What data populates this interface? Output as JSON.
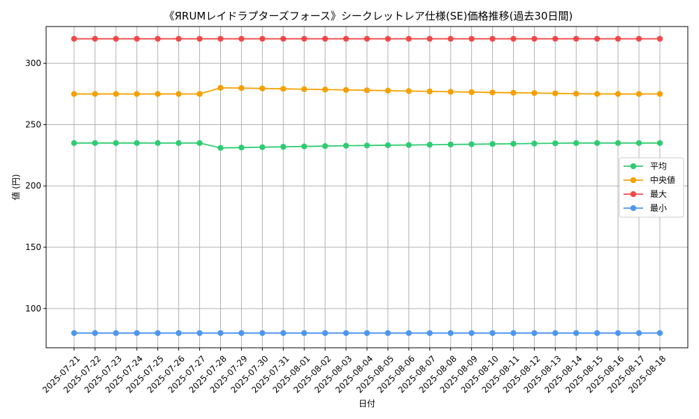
{
  "chart_data": {
    "type": "line",
    "title": "《ЯRUMレイドラプターズフォース》シークレットレア仕様(SE)価格推移(過去30日間)",
    "xlabel": "日付",
    "ylabel": "値 (円)",
    "ylim": [
      68,
      330
    ],
    "yticks": [
      100,
      150,
      200,
      250,
      300
    ],
    "grid": true,
    "legend_position": "center-right",
    "categories": [
      "2025-07-21",
      "2025-07-22",
      "2025-07-23",
      "2025-07-24",
      "2025-07-25",
      "2025-07-26",
      "2025-07-27",
      "2025-07-28",
      "2025-07-29",
      "2025-07-30",
      "2025-07-31",
      "2025-08-01",
      "2025-08-02",
      "2025-08-03",
      "2025-08-04",
      "2025-08-05",
      "2025-08-06",
      "2025-08-07",
      "2025-08-08",
      "2025-08-09",
      "2025-08-10",
      "2025-08-11",
      "2025-08-12",
      "2025-08-13",
      "2025-08-14",
      "2025-08-15",
      "2025-08-16",
      "2025-08-17",
      "2025-08-18"
    ],
    "series": [
      {
        "name": "平均",
        "color": "#2ecc71",
        "values": [
          235,
          235,
          235,
          235,
          235,
          235,
          235,
          231,
          231.3,
          231.6,
          231.9,
          232.2,
          232.5,
          232.8,
          233,
          233.2,
          233.4,
          233.6,
          233.8,
          234,
          234.2,
          234.4,
          234.6,
          234.8,
          235,
          235,
          235,
          235,
          235
        ]
      },
      {
        "name": "中央値",
        "color": "#f5a000",
        "values": [
          275,
          275,
          275,
          275,
          275,
          275,
          275,
          280,
          279.8,
          279.5,
          279.2,
          278.9,
          278.6,
          278.3,
          278,
          277.7,
          277.4,
          277.1,
          276.8,
          276.5,
          276.2,
          276,
          275.8,
          275.5,
          275.2,
          275,
          275,
          275,
          275
        ]
      },
      {
        "name": "最大",
        "color": "#f04848",
        "values": [
          320,
          320,
          320,
          320,
          320,
          320,
          320,
          320,
          320,
          320,
          320,
          320,
          320,
          320,
          320,
          320,
          320,
          320,
          320,
          320,
          320,
          320,
          320,
          320,
          320,
          320,
          320,
          320,
          320
        ]
      },
      {
        "name": "最小",
        "color": "#4d96f0",
        "values": [
          80,
          80,
          80,
          80,
          80,
          80,
          80,
          80,
          80,
          80,
          80,
          80,
          80,
          80,
          80,
          80,
          80,
          80,
          80,
          80,
          80,
          80,
          80,
          80,
          80,
          80,
          80,
          80,
          80
        ]
      }
    ]
  }
}
